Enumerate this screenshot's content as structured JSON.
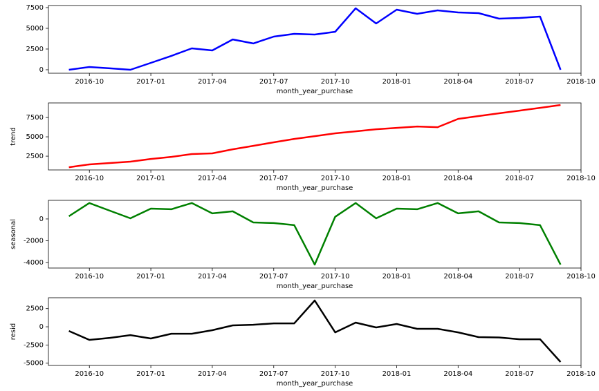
{
  "chart_data": [
    {
      "type": "line",
      "x": [
        "2016-09",
        "2016-10",
        "2016-11",
        "2016-12",
        "2017-01",
        "2017-02",
        "2017-03",
        "2017-04",
        "2017-05",
        "2017-06",
        "2017-07",
        "2017-08",
        "2017-09",
        "2017-10",
        "2017-11",
        "2017-12",
        "2018-01",
        "2018-02",
        "2018-03",
        "2018-04",
        "2018-05",
        "2018-06",
        "2018-07",
        "2018-08",
        "2018-09"
      ],
      "series": [
        {
          "color": "#0000ff",
          "values": [
            0,
            330,
            170,
            0,
            830,
            1670,
            2580,
            2330,
            3660,
            3170,
            4000,
            4330,
            4250,
            4580,
            7420,
            5580,
            7250,
            6750,
            7170,
            6920,
            6830,
            6170,
            6250,
            6420,
            0
          ]
        }
      ],
      "xlabel": "month_year_purchase",
      "xlim": [
        "2016-08",
        "2018-10"
      ],
      "xticks": [
        "2016-10",
        "2017-01",
        "2017-04",
        "2017-07",
        "2017-10",
        "2018-01",
        "2018-04",
        "2018-07",
        "2018-10"
      ],
      "ylim": [
        -420,
        7750
      ],
      "yticks": [
        0,
        2500,
        5000,
        7500
      ]
    },
    {
      "type": "line",
      "x": [
        "2016-09",
        "2016-10",
        "2016-11",
        "2016-12",
        "2017-01",
        "2017-02",
        "2017-03",
        "2017-04",
        "2017-05",
        "2017-06",
        "2017-07",
        "2017-08",
        "2017-09",
        "2017-10",
        "2017-11",
        "2017-12",
        "2018-01",
        "2018-02",
        "2018-03",
        "2018-04",
        "2018-05",
        "2018-06",
        "2018-07",
        "2018-08",
        "2018-09"
      ],
      "series": [
        {
          "color": "#ff0000",
          "values": [
            1070,
            1430,
            1610,
            1790,
            2140,
            2410,
            2770,
            2860,
            3390,
            3840,
            4290,
            4730,
            5090,
            5450,
            5710,
            5980,
            6160,
            6340,
            6250,
            7320,
            7680,
            8040,
            8390,
            8750,
            9110
          ]
        }
      ],
      "xlabel": "month_year_purchase",
      "ylabel": "trend",
      "xlim": [
        "2016-08",
        "2018-10"
      ],
      "xticks": [
        "2016-10",
        "2017-01",
        "2017-04",
        "2017-07",
        "2017-10",
        "2018-01",
        "2018-04",
        "2018-07",
        "2018-10"
      ],
      "ylim": [
        720,
        9380
      ],
      "yticks": [
        2500,
        5000,
        7500
      ]
    },
    {
      "type": "line",
      "x": [
        "2016-09",
        "2016-10",
        "2016-11",
        "2016-12",
        "2017-01",
        "2017-02",
        "2017-03",
        "2017-04",
        "2017-05",
        "2017-06",
        "2017-07",
        "2017-08",
        "2017-09",
        "2017-10",
        "2017-11",
        "2017-12",
        "2018-01",
        "2018-02",
        "2018-03",
        "2018-04",
        "2018-05",
        "2018-06",
        "2018-07",
        "2018-08",
        "2018-09"
      ],
      "series": [
        {
          "color": "#008000",
          "values": [
            250,
            1460,
            760,
            60,
            950,
            890,
            1460,
            510,
            700,
            -320,
            -380,
            -570,
            -4190,
            200,
            1460,
            60,
            950,
            890,
            1460,
            510,
            700,
            -320,
            -380,
            -570,
            -4190
          ]
        }
      ],
      "xlabel": "month_year_purchase",
      "ylabel": "seasonal",
      "xlim": [
        "2016-08",
        "2018-10"
      ],
      "xticks": [
        "2016-10",
        "2017-01",
        "2017-04",
        "2017-07",
        "2017-10",
        "2018-01",
        "2018-04",
        "2018-07",
        "2018-10"
      ],
      "ylim": [
        -4510,
        1710
      ],
      "yticks": [
        -4000,
        -2000,
        0
      ]
    },
    {
      "type": "line",
      "x": [
        "2016-09",
        "2016-10",
        "2016-11",
        "2016-12",
        "2017-01",
        "2017-02",
        "2017-03",
        "2017-04",
        "2017-05",
        "2017-06",
        "2017-07",
        "2017-08",
        "2017-09",
        "2017-10",
        "2017-11",
        "2017-12",
        "2018-01",
        "2018-02",
        "2018-03",
        "2018-04",
        "2018-05",
        "2018-06",
        "2018-07",
        "2018-08",
        "2018-09"
      ],
      "series": [
        {
          "color": "#000000",
          "values": [
            -570,
            -1800,
            -1520,
            -1140,
            -1610,
            -950,
            -950,
            -470,
            190,
            280,
            470,
            470,
            3610,
            -760,
            570,
            -90,
            380,
            -280,
            -280,
            -760,
            -1420,
            -1470,
            -1710,
            -1710,
            -4840
          ]
        }
      ],
      "xlabel": "month_year_purchase",
      "ylabel": "resid",
      "xlim": [
        "2016-08",
        "2018-10"
      ],
      "xticks": [
        "2016-10",
        "2017-01",
        "2017-04",
        "2017-07",
        "2017-10",
        "2018-01",
        "2018-04",
        "2018-07",
        "2018-10"
      ],
      "ylim": [
        -5310,
        3990
      ],
      "yticks": [
        -5000,
        -2500,
        0,
        2500
      ]
    }
  ]
}
